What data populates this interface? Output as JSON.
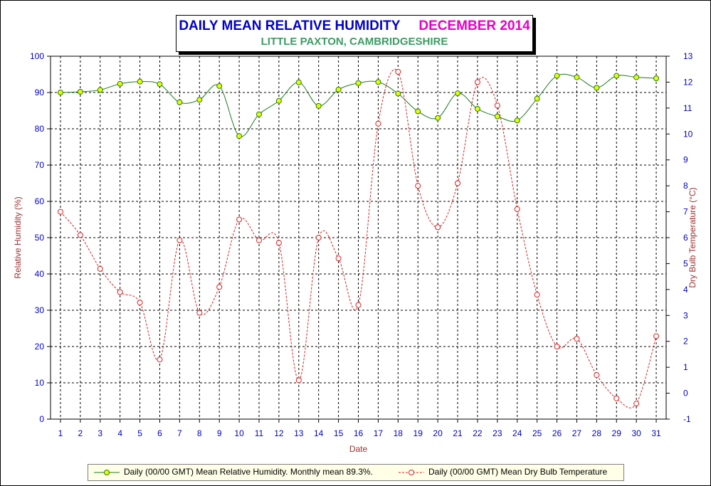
{
  "title": {
    "main": "DAILY MEAN RELATIVE HUMIDITY",
    "month": "DECEMBER 2014",
    "subtitle": "LITTLE PAXTON, CAMBRIDGESHIRE"
  },
  "colors": {
    "title_main": "#0000c8",
    "title_month": "#e600c8",
    "subtitle": "#3c9c64",
    "humidity_line": "#1f7a1f",
    "humidity_marker": "#e8ff00",
    "temperature_line": "#dc1e1e",
    "axis_label": "#a03030",
    "tick_label": "#0000c8"
  },
  "chart_data": {
    "type": "line",
    "xlabel": "Date",
    "ylabel": "Relative Humidity (%)",
    "y2label": "Dry Bulb Temperature (°C)",
    "ylim": [
      0,
      100
    ],
    "y2lim": [
      -1,
      13
    ],
    "yticks": [
      "0",
      "10",
      "20",
      "30",
      "40",
      "50",
      "60",
      "70",
      "80",
      "90",
      "100"
    ],
    "y2ticks": [
      "-1",
      "0",
      "1",
      "2",
      "3",
      "4",
      "5",
      "6",
      "7",
      "8",
      "9",
      "10",
      "11",
      "12",
      "13"
    ],
    "x": [
      "1",
      "2",
      "3",
      "4",
      "5",
      "6",
      "7",
      "8",
      "9",
      "10",
      "11",
      "12",
      "13",
      "14",
      "15",
      "16",
      "17",
      "18",
      "19",
      "20",
      "21",
      "22",
      "23",
      "24",
      "25",
      "26",
      "27",
      "28",
      "29",
      "30",
      "31"
    ],
    "grid": true,
    "legend_position": "bottom",
    "series": [
      {
        "name": "Daily (00/00 GMT) Mean Relative Humidity. Monthly mean 89.3%.",
        "axis": "left",
        "values": [
          90.0,
          90.2,
          90.7,
          92.4,
          93.0,
          92.3,
          87.3,
          88.0,
          91.8,
          78.0,
          84.0,
          87.7,
          92.8,
          86.3,
          90.8,
          92.6,
          92.9,
          89.7,
          84.8,
          83.0,
          89.8,
          85.5,
          83.4,
          82.3,
          88.3,
          94.6,
          94.2,
          91.3,
          94.6,
          94.2,
          93.9
        ]
      },
      {
        "name": "Daily (00/00 GMT) Mean Dry Bulb Temperature",
        "axis": "right",
        "values": [
          7.0,
          6.1,
          4.8,
          3.9,
          3.5,
          1.3,
          5.9,
          3.1,
          4.1,
          6.7,
          5.9,
          5.8,
          0.5,
          6.0,
          5.2,
          3.4,
          10.4,
          12.4,
          8.0,
          6.4,
          8.1,
          12.0,
          11.1,
          7.1,
          3.8,
          1.8,
          2.1,
          0.7,
          -0.2,
          -0.4,
          2.2
        ]
      }
    ]
  }
}
